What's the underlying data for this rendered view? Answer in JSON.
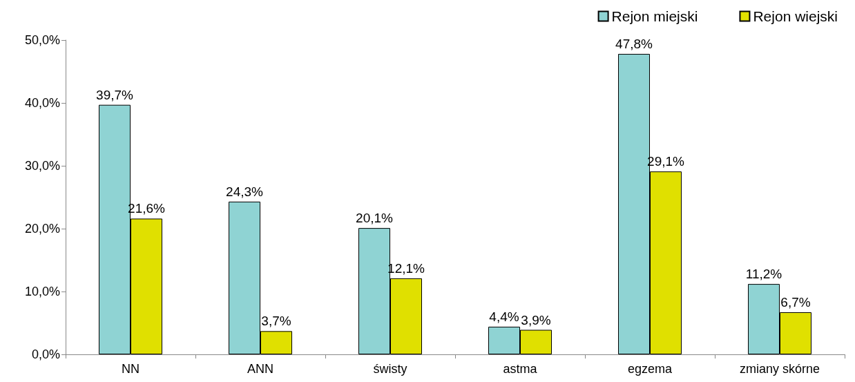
{
  "chart_data": {
    "type": "bar",
    "categories": [
      "NN",
      "ANN",
      "świsty",
      "astma",
      "egzema",
      "zmiany skórne"
    ],
    "series": [
      {
        "name": "Rejon miejski",
        "color": "#8fd3d3",
        "values": [
          39.7,
          24.3,
          20.1,
          4.4,
          47.8,
          11.2
        ],
        "value_labels": [
          "39,7%",
          "24,3%",
          "20,1%",
          "4,4%",
          "47,8%",
          "11,2%"
        ]
      },
      {
        "name": "Rejon wiejski",
        "color": "#e0e000",
        "values": [
          21.6,
          3.7,
          12.1,
          3.9,
          29.1,
          6.7
        ],
        "value_labels": [
          "21,6%",
          "3,7%",
          "12,1%",
          "3,9%",
          "29,1%",
          "6,7%"
        ]
      }
    ],
    "ylim": [
      0,
      50
    ],
    "yticks": [
      {
        "value": 0,
        "label": "0,0%"
      },
      {
        "value": 10,
        "label": "10,0%"
      },
      {
        "value": 20,
        "label": "20,0%"
      },
      {
        "value": 30,
        "label": "30,0%"
      },
      {
        "value": 40,
        "label": "40,0%"
      },
      {
        "value": 50,
        "label": "50,0%"
      }
    ],
    "grid": false,
    "legend": "top right"
  }
}
